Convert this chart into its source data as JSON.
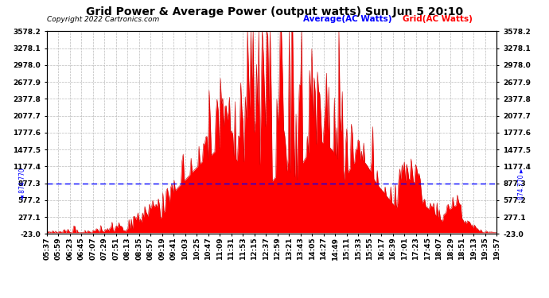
{
  "title": "Grid Power & Average Power (output watts) Sun Jun 5 20:10",
  "copyright": "Copyright 2022 Cartronics.com",
  "legend_avg": "Average(AC Watts)",
  "legend_grid": "Grid(AC Watts)",
  "avg_value": 874.77,
  "ymin": -23.0,
  "ymax": 3578.2,
  "yticks": [
    3578.2,
    3278.1,
    2978.0,
    2677.9,
    2377.8,
    2077.7,
    1777.6,
    1477.5,
    1177.4,
    877.3,
    577.2,
    277.1,
    -23.0
  ],
  "background_color": "#ffffff",
  "grid_color": "#bbbbbb",
  "fill_color": "#ff0000",
  "line_color": "#cc0000",
  "avg_line_color": "#0000ff",
  "title_color": "#000000",
  "copyright_color": "#000000",
  "tick_label_color": "#000000",
  "title_fontsize": 10,
  "copyright_fontsize": 6.5,
  "legend_fontsize": 7.5,
  "axis_fontsize": 6.5,
  "tick_labels": [
    "05:37",
    "05:59",
    "06:23",
    "06:45",
    "07:07",
    "07:29",
    "07:51",
    "08:13",
    "08:35",
    "08:57",
    "09:19",
    "09:41",
    "10:03",
    "10:25",
    "10:47",
    "11:09",
    "11:31",
    "11:53",
    "12:15",
    "12:37",
    "12:59",
    "13:21",
    "13:43",
    "14:05",
    "14:27",
    "14:49",
    "15:11",
    "15:33",
    "15:55",
    "16:17",
    "16:39",
    "17:01",
    "17:23",
    "17:45",
    "18:07",
    "18:29",
    "18:51",
    "19:13",
    "19:35",
    "19:57"
  ]
}
